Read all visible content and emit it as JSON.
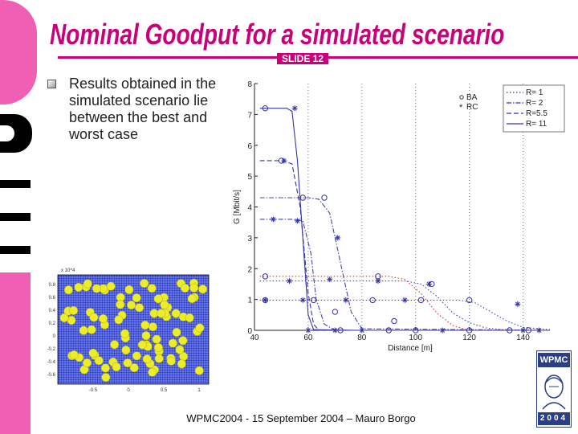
{
  "slide": {
    "title": "Nominal Goodput for a simulated scenario",
    "slide_number": "SLIDE 12",
    "bullet": "Results obtained in the simulated scenario lie between the best and worst case",
    "footer": "WPMC2004 - 15 September 2004 – Mauro Borgo",
    "logo_text": "WPMC",
    "logo_year": "2004",
    "accent_color": "#c8007a",
    "bar_color": "#f05fb4"
  },
  "chart_data": {
    "type": "line",
    "xlabel": "Distance [m]",
    "ylabel": "G [Mbit/s]",
    "xlim": [
      40,
      150
    ],
    "ylim": [
      0,
      8
    ],
    "x_ticks": [
      40,
      60,
      80,
      100,
      120,
      140
    ],
    "y_ticks": [
      0,
      1,
      2,
      3,
      4,
      5,
      6,
      7,
      8
    ],
    "grid": "dotted vertical",
    "marker_legend": [
      {
        "marker": "circle",
        "label": "BA"
      },
      {
        "marker": "star",
        "label": "RC"
      }
    ],
    "line_legend": [
      {
        "label": "R=  1",
        "dash": "dotted"
      },
      {
        "label": "R=  2",
        "dash": "dashdot"
      },
      {
        "label": "R=5.5",
        "dash": "dashed"
      },
      {
        "label": "R= 11",
        "dash": "solid"
      }
    ],
    "series": [
      {
        "label": "R= 11",
        "dash": "solid",
        "color": "#3333aa",
        "x": [
          42,
          52,
          54,
          56,
          58,
          60,
          62,
          80,
          150
        ],
        "y": [
          7.2,
          7.2,
          7.1,
          5.5,
          3.0,
          0.5,
          0.02,
          0.0,
          0.0
        ]
      },
      {
        "label": "R=5.5",
        "dash": "dashed",
        "color": "#3333aa",
        "x": [
          42,
          50,
          54,
          57,
          60,
          62,
          64,
          80,
          150
        ],
        "y": [
          5.5,
          5.5,
          5.4,
          4.0,
          1.2,
          0.2,
          0.0,
          0.0,
          0.0
        ]
      },
      {
        "label": "R=  2",
        "dash": "dashdot",
        "color": "#4444aa",
        "x": [
          42,
          60,
          64,
          68,
          72,
          76,
          80,
          150
        ],
        "y": [
          4.3,
          4.3,
          4.25,
          3.8,
          2.2,
          0.6,
          0.05,
          0.0
        ]
      },
      {
        "label": "R=  2",
        "dash": "dashdot",
        "color": "#4444aa",
        "x": [
          42,
          54,
          58,
          61,
          63,
          66,
          70,
          150
        ],
        "y": [
          3.6,
          3.6,
          3.55,
          2.5,
          1.0,
          0.2,
          0.0,
          0.0
        ]
      },
      {
        "label": "R=  1",
        "dash": "dotted",
        "color": "#cc3333",
        "x": [
          42,
          90,
          96,
          102,
          108,
          114,
          120,
          150
        ],
        "y": [
          1.75,
          1.75,
          1.65,
          1.2,
          0.55,
          0.15,
          0.0,
          0.0
        ]
      },
      {
        "label": "R=  1",
        "dash": "dotted",
        "color": "#4444aa",
        "x": [
          42,
          96,
          102,
          108,
          114,
          120,
          126,
          132,
          150
        ],
        "y": [
          1.6,
          1.6,
          1.5,
          1.1,
          0.55,
          0.25,
          0.08,
          0.02,
          0.0
        ]
      },
      {
        "label": "R=  1",
        "dash": "dotted",
        "color": "#4444aa",
        "x": [
          42,
          116,
          122,
          128,
          134,
          140,
          150
        ],
        "y": [
          0.98,
          0.98,
          0.9,
          0.6,
          0.3,
          0.1,
          0.02
        ]
      }
    ],
    "markers": {
      "circle": [
        [
          44,
          7.2
        ],
        [
          58,
          4.3
        ],
        [
          66,
          4.3
        ],
        [
          50,
          5.5
        ],
        [
          86,
          1.75
        ],
        [
          106,
          1.5
        ],
        [
          44,
          1.75
        ],
        [
          84,
          0.98
        ],
        [
          120,
          0.98
        ],
        [
          72,
          0.0
        ],
        [
          90,
          0.0
        ],
        [
          100,
          0.0
        ],
        [
          120,
          0.0
        ],
        [
          135,
          0.0
        ],
        [
          142,
          0.0
        ],
        [
          44,
          0.98
        ],
        [
          62,
          0.98
        ],
        [
          102,
          0.98
        ],
        [
          70,
          0.6
        ],
        [
          92,
          0.3
        ]
      ],
      "star": [
        [
          55,
          7.2
        ],
        [
          51,
          5.5
        ],
        [
          56,
          3.55
        ],
        [
          47,
          3.6
        ],
        [
          71,
          3.0
        ],
        [
          53,
          1.6
        ],
        [
          68,
          1.65
        ],
        [
          105,
          1.5
        ],
        [
          86,
          1.6
        ],
        [
          44,
          0.98
        ],
        [
          58,
          0.98
        ],
        [
          74,
          0.98
        ],
        [
          96,
          0.98
        ],
        [
          138,
          0.85
        ],
        [
          60,
          0.0
        ],
        [
          70,
          0.0
        ],
        [
          80,
          0.0
        ],
        [
          110,
          0.0
        ],
        [
          140,
          0.0
        ],
        [
          146,
          0.0
        ]
      ]
    },
    "inset": {
      "type": "scatter",
      "x_exponent_label": "x 10^4",
      "x_ticks": [
        "-0.5",
        "0",
        "0.5",
        "1"
      ],
      "y_ticks": [
        "0.8",
        "0.6",
        "0.4",
        "0.2",
        "0",
        "-0.2",
        "-0.4",
        "-0.6"
      ]
    }
  }
}
